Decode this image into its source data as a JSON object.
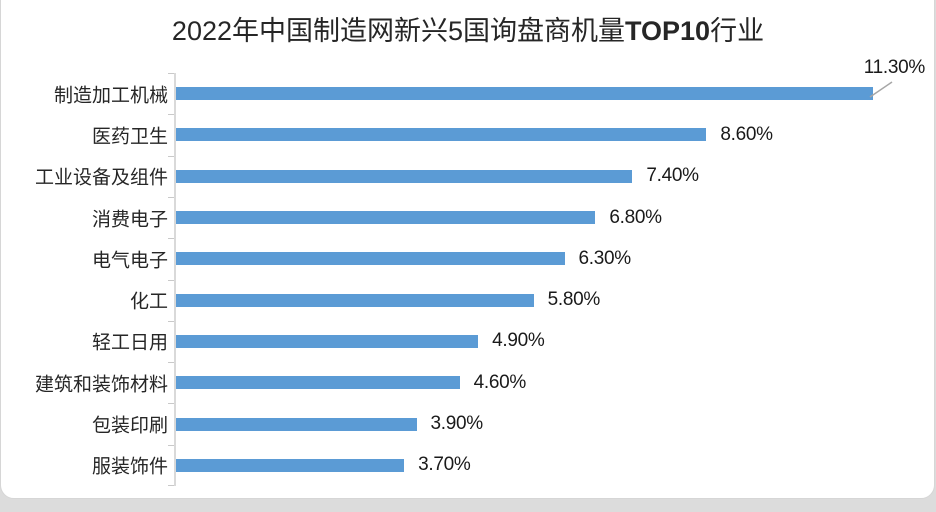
{
  "title": {
    "prefix": "2022年中国制造网新兴5国询盘商机量",
    "highlight": "TOP10",
    "suffix": "行业"
  },
  "chart_data": {
    "type": "bar",
    "orientation": "horizontal",
    "title": "2022年中国制造网新兴5国询盘商机量TOP10行业",
    "categories": [
      "制造加工机械",
      "医药卫生",
      "工业设备及组件",
      "消费电子",
      "电气电子",
      "化工",
      "轻工日用",
      "建筑和装饰材料",
      "包装印刷",
      "服装饰件"
    ],
    "values": [
      11.3,
      8.6,
      7.4,
      6.8,
      6.3,
      5.8,
      4.9,
      4.6,
      3.9,
      3.7
    ],
    "value_labels": [
      "11.30%",
      "8.60%",
      "7.40%",
      "6.80%",
      "6.30%",
      "5.80%",
      "4.90%",
      "4.60%",
      "3.90%",
      "3.70%"
    ],
    "xlabel": "",
    "ylabel": "",
    "xlim": [
      0,
      12
    ],
    "grid": false,
    "legend": "none",
    "bar_color": "#5B9BD5",
    "axis_color": "#D9D9D9",
    "tick_color": "#C9C9C9",
    "leader_line_color": "#A6A6A6",
    "callout": {
      "category": "制造加工机械",
      "label": "11.30%"
    }
  }
}
